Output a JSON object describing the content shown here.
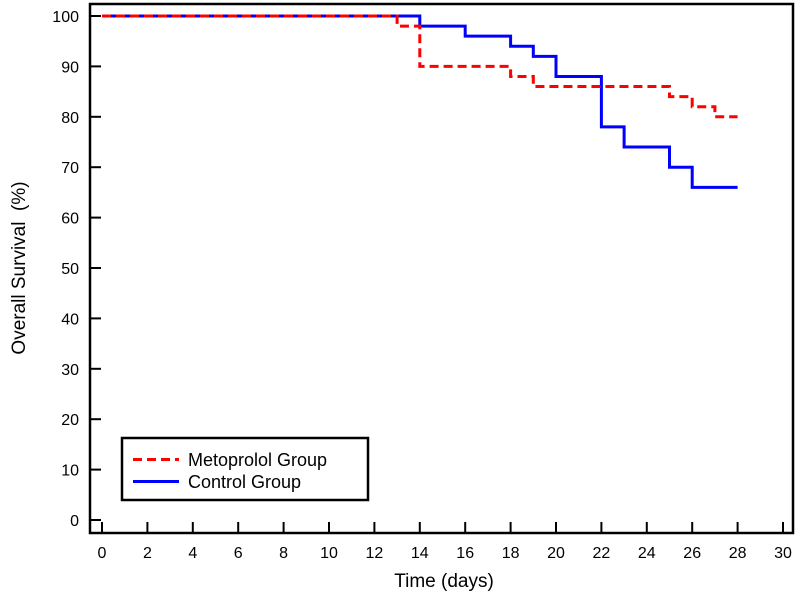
{
  "figure": {
    "x_axis_title": "Time (days)",
    "y_axis_title": "Overall Survival  (%)"
  },
  "legend": {
    "items": [
      {
        "label": "Metoprolol Group"
      },
      {
        "label": "Control Group"
      }
    ]
  },
  "chart_data": {
    "type": "line",
    "subtype": "kaplan-meier-step",
    "title": "",
    "xlabel": "Time (days)",
    "ylabel": "Overall Survival (%)",
    "xlim": [
      0,
      30
    ],
    "ylim": [
      0,
      100
    ],
    "x_ticks": [
      0,
      2,
      4,
      6,
      8,
      10,
      12,
      14,
      16,
      18,
      20,
      22,
      24,
      26,
      28,
      30
    ],
    "y_ticks": [
      0,
      10,
      20,
      30,
      40,
      50,
      60,
      70,
      80,
      90,
      100
    ],
    "grid": false,
    "legend_position": "lower-left",
    "series": [
      {
        "name": "Metoprolol Group",
        "color": "#ff0000",
        "dashed": true,
        "points": [
          [
            0,
            100
          ],
          [
            13,
            100
          ],
          [
            13,
            98
          ],
          [
            14,
            98
          ],
          [
            14,
            90
          ],
          [
            18,
            90
          ],
          [
            18,
            88
          ],
          [
            19,
            88
          ],
          [
            19,
            86
          ],
          [
            25,
            86
          ],
          [
            25,
            84
          ],
          [
            26,
            84
          ],
          [
            26,
            82
          ],
          [
            27,
            82
          ],
          [
            27,
            80
          ],
          [
            28,
            80
          ]
        ]
      },
      {
        "name": "Control Group",
        "color": "#0000ff",
        "dashed": false,
        "points": [
          [
            0,
            100
          ],
          [
            14,
            100
          ],
          [
            14,
            98
          ],
          [
            16,
            98
          ],
          [
            16,
            96
          ],
          [
            18,
            96
          ],
          [
            18,
            94
          ],
          [
            19,
            94
          ],
          [
            19,
            92
          ],
          [
            20,
            92
          ],
          [
            20,
            88
          ],
          [
            22,
            88
          ],
          [
            22,
            78
          ],
          [
            23,
            78
          ],
          [
            23,
            74
          ],
          [
            25,
            74
          ],
          [
            25,
            70
          ],
          [
            26,
            70
          ],
          [
            26,
            66
          ],
          [
            28,
            66
          ]
        ]
      }
    ]
  }
}
